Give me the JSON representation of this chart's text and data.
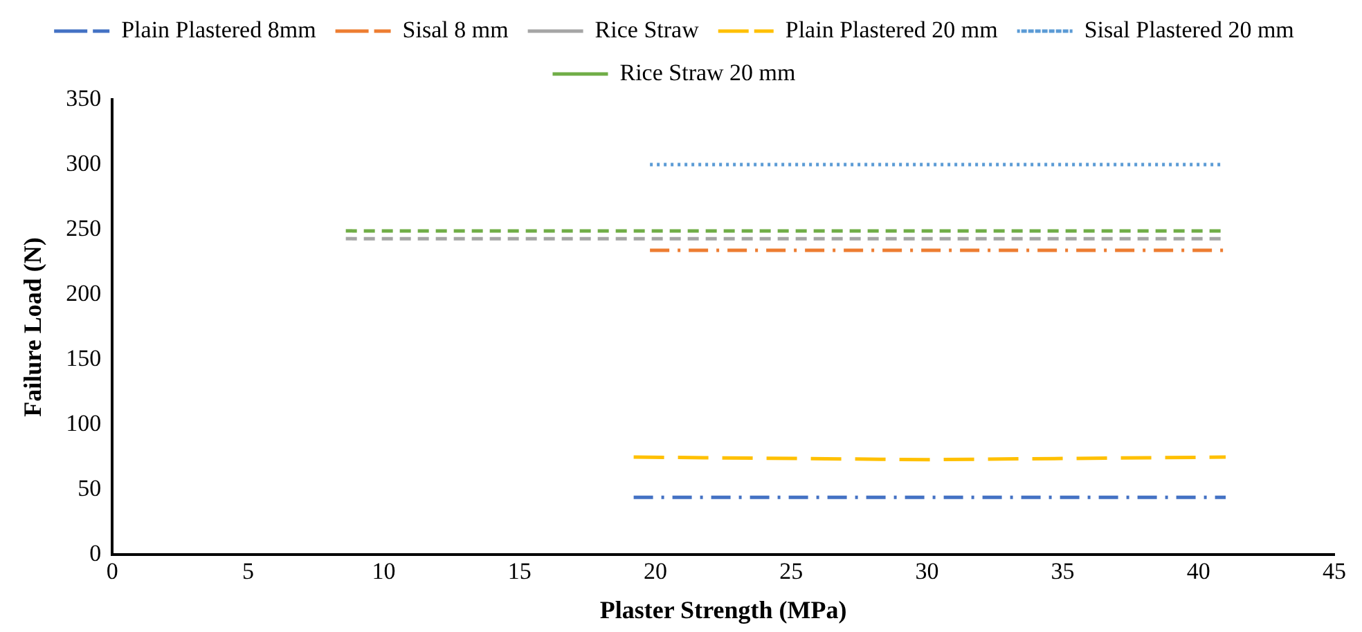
{
  "chart_data": {
    "type": "line",
    "xlabel": "Plaster Strength (MPa)",
    "ylabel": "Failure Load (N)",
    "xlim": [
      0,
      45
    ],
    "xticks": [
      0,
      5,
      10,
      15,
      20,
      25,
      30,
      35,
      40,
      45
    ],
    "ylim": [
      0,
      350
    ],
    "yticks": [
      0,
      50,
      100,
      150,
      200,
      250,
      300,
      350
    ],
    "grid": false,
    "legend": "top",
    "marker": "none",
    "series": [
      {
        "name": "Plain Plastered 8mm",
        "color": "#4472c4",
        "line_style": "dashdot",
        "x": [
          19.2,
          41
        ],
        "values": [
          44,
          44
        ]
      },
      {
        "name": "Sisal 8 mm",
        "color": "#ed7d31",
        "line_style": "dashdot",
        "x": [
          19.8,
          41
        ],
        "values": [
          234,
          234
        ]
      },
      {
        "name": "Rice Straw",
        "color": "#a5a5a5",
        "line_style": "dashed",
        "x": [
          8.6,
          40.9
        ],
        "values": [
          243,
          243
        ]
      },
      {
        "name": "Plain Plastered 20 mm",
        "color": "#ffc000",
        "line_style": "longdash",
        "x": [
          19.2,
          30,
          41
        ],
        "values": [
          75,
          73,
          75
        ]
      },
      {
        "name": "Sisal Plastered 20 mm",
        "color": "#5b9bd5",
        "line_style": "dotted",
        "x": [
          19.8,
          40.8
        ],
        "values": [
          300,
          300
        ]
      },
      {
        "name": "Rice Straw 20 mm",
        "color": "#70ad47",
        "line_style": "dashed",
        "x": [
          8.6,
          40.9
        ],
        "values": [
          249,
          249
        ]
      }
    ]
  }
}
